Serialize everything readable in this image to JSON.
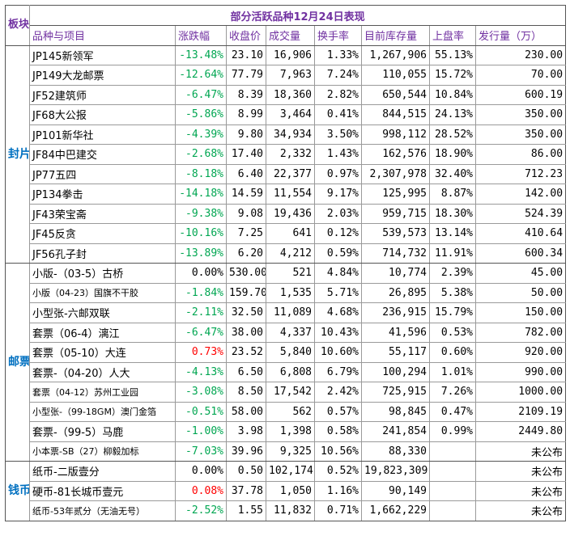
{
  "table": {
    "block_header": "板块",
    "title": "部分活跃品种12月24日表现",
    "headers": [
      "品种与项目",
      "涨跌幅",
      "收盘价",
      "成交量",
      "换手率",
      "目前库存量",
      "上盘率",
      "发行量（万）"
    ],
    "sections": [
      {
        "label": "封片",
        "rows": [
          {
            "name": "JP145新领军",
            "change": "-13.48%",
            "close": "23.10",
            "volume": "16,906",
            "turnover": "1.33%",
            "stock": "1,267,906",
            "ratio": "55.13%",
            "issue": "230.00"
          },
          {
            "name": "JP149大龙邮票",
            "change": "-12.64%",
            "close": "77.79",
            "volume": "7,963",
            "turnover": "7.24%",
            "stock": "110,055",
            "ratio": "15.72%",
            "issue": "70.00"
          },
          {
            "name": "JF52建筑师",
            "change": "-6.47%",
            "close": "8.39",
            "volume": "18,360",
            "turnover": "2.82%",
            "stock": "650,544",
            "ratio": "10.84%",
            "issue": "600.19"
          },
          {
            "name": "JF68大公报",
            "change": "-5.86%",
            "close": "8.99",
            "volume": "3,464",
            "turnover": "0.41%",
            "stock": "844,515",
            "ratio": "24.13%",
            "issue": "350.00"
          },
          {
            "name": "JP101新华社",
            "change": "-4.39%",
            "close": "9.80",
            "volume": "34,934",
            "turnover": "3.50%",
            "stock": "998,112",
            "ratio": "28.52%",
            "issue": "350.00"
          },
          {
            "name": "JF84中巴建交",
            "change": "-2.68%",
            "close": "17.40",
            "volume": "2,332",
            "turnover": "1.43%",
            "stock": "162,576",
            "ratio": "18.90%",
            "issue": "86.00"
          },
          {
            "name": "JP77五四",
            "change": "-8.18%",
            "close": "6.40",
            "volume": "22,377",
            "turnover": "0.97%",
            "stock": "2,307,978",
            "ratio": "32.40%",
            "issue": "712.23"
          },
          {
            "name": "JP134拳击",
            "change": "-14.18%",
            "close": "14.59",
            "volume": "11,554",
            "turnover": "9.17%",
            "stock": "125,995",
            "ratio": "8.87%",
            "issue": "142.00"
          },
          {
            "name": "JF43荣宝斋",
            "change": "-9.38%",
            "close": "9.08",
            "volume": "19,436",
            "turnover": "2.03%",
            "stock": "959,715",
            "ratio": "18.30%",
            "issue": "524.39"
          },
          {
            "name": "JF45反贪",
            "change": "-10.16%",
            "close": "7.25",
            "volume": "641",
            "turnover": "0.12%",
            "stock": "539,573",
            "ratio": "13.14%",
            "issue": "410.64"
          },
          {
            "name": "JF56孔子封",
            "change": "-13.89%",
            "close": "6.20",
            "volume": "4,212",
            "turnover": "0.59%",
            "stock": "714,732",
            "ratio": "11.91%",
            "issue": "600.34"
          }
        ]
      },
      {
        "label": "邮票",
        "rows": [
          {
            "name": "小版-（03-5）古桥",
            "change": "0.00%",
            "close": "530.00",
            "volume": "521",
            "turnover": "4.84%",
            "stock": "10,774",
            "ratio": "2.39%",
            "issue": "45.00"
          },
          {
            "name": "小版（04-23）国旗不干胶",
            "change": "-1.84%",
            "close": "159.70",
            "volume": "1,535",
            "turnover": "5.71%",
            "stock": "26,895",
            "ratio": "5.38%",
            "issue": "50.00"
          },
          {
            "name": "小型张-六邮双联",
            "change": "-2.11%",
            "close": "32.50",
            "volume": "11,089",
            "turnover": "4.68%",
            "stock": "236,915",
            "ratio": "15.79%",
            "issue": "150.00"
          },
          {
            "name": "套票（06-4）漓江",
            "change": "-6.47%",
            "close": "38.00",
            "volume": "4,337",
            "turnover": "10.43%",
            "stock": "41,596",
            "ratio": "0.53%",
            "issue": "782.00"
          },
          {
            "name": "套票（05-10）大连",
            "change": "0.73%",
            "close": "23.52",
            "volume": "5,840",
            "turnover": "10.60%",
            "stock": "55,117",
            "ratio": "0.60%",
            "issue": "920.00"
          },
          {
            "name": "套票-（04-20）人大",
            "change": "-4.13%",
            "close": "6.50",
            "volume": "6,808",
            "turnover": "6.79%",
            "stock": "100,294",
            "ratio": "1.01%",
            "issue": "990.00"
          },
          {
            "name": "套票（04-12）苏州工业园",
            "change": "-3.08%",
            "close": "8.50",
            "volume": "17,542",
            "turnover": "2.42%",
            "stock": "725,915",
            "ratio": "7.26%",
            "issue": "1000.00"
          },
          {
            "name": "小型张-（99-18GM）澳门金箔",
            "change": "-0.51%",
            "close": "58.00",
            "volume": "562",
            "turnover": "0.57%",
            "stock": "98,845",
            "ratio": "0.47%",
            "issue": "2109.19"
          },
          {
            "name": "套票-（99-5）马鹿",
            "change": "-1.00%",
            "close": "3.98",
            "volume": "1,398",
            "turnover": "0.58%",
            "stock": "241,854",
            "ratio": "0.99%",
            "issue": "2449.80"
          },
          {
            "name": "小本票-SB（27）柳毅加标",
            "change": "-7.03%",
            "close": "39.96",
            "volume": "9,325",
            "turnover": "10.56%",
            "stock": "88,330",
            "ratio": "",
            "issue": "未公布"
          }
        ]
      },
      {
        "label": "钱币",
        "rows": [
          {
            "name": "纸币-二版壹分",
            "change": "0.00%",
            "close": "0.50",
            "volume": "102,174",
            "turnover": "0.52%",
            "stock": "19,823,309",
            "ratio": "",
            "issue": "未公布"
          },
          {
            "name": "硬币-81长城币壹元",
            "change": "0.08%",
            "close": "37.78",
            "volume": "1,050",
            "turnover": "1.16%",
            "stock": "90,149",
            "ratio": "",
            "issue": "未公布"
          },
          {
            "name": "纸币-53年贰分（无油无号）",
            "change": "-2.52%",
            "close": "1.55",
            "volume": "11,832",
            "turnover": "0.71%",
            "stock": "1,662,229",
            "ratio": "",
            "issue": "未公布"
          }
        ]
      }
    ]
  }
}
